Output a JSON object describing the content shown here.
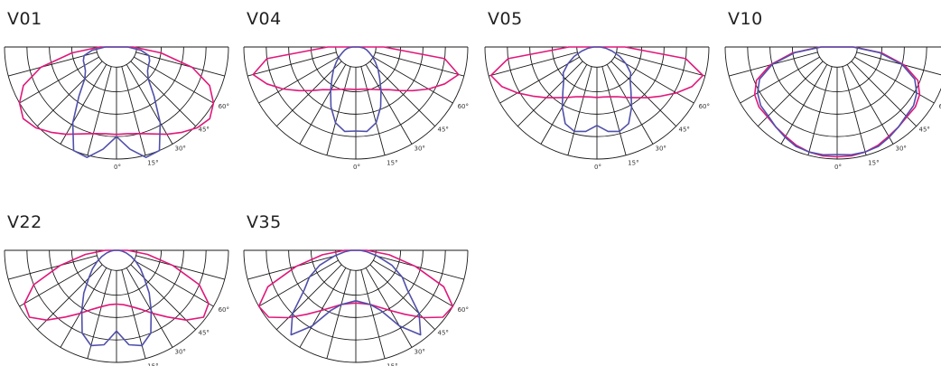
{
  "colors": {
    "c0": "#e0187a",
    "c90": "#5050aa",
    "grid": "#1a1a1a"
  },
  "angle_labels": [
    "0°",
    "15°",
    "30°",
    "45°",
    "60°"
  ],
  "panels": [
    {
      "title": "V01",
      "c0": [
        0.78,
        0.78,
        0.8,
        0.84,
        0.9,
        0.96,
        1.02,
        1.05,
        1.0,
        0.9,
        0.7,
        0.4,
        0.15
      ],
      "c90": [
        0.8,
        0.92,
        1.02,
        1.0,
        0.78,
        0.55,
        0.4,
        0.35,
        0.33,
        0.32,
        0.3,
        0.22,
        0.1
      ]
    },
    {
      "title": "V04",
      "c0": [
        0.38,
        0.38,
        0.39,
        0.41,
        0.44,
        0.48,
        0.55,
        0.64,
        0.75,
        0.86,
        0.95,
        0.8,
        0.25
      ],
      "c90": [
        0.75,
        0.76,
        0.7,
        0.58,
        0.45,
        0.35,
        0.28,
        0.22,
        0.17,
        0.13,
        0.1,
        0.07,
        0.03
      ]
    },
    {
      "title": "V05",
      "c0": [
        0.45,
        0.45,
        0.46,
        0.48,
        0.52,
        0.57,
        0.64,
        0.72,
        0.82,
        0.92,
        0.98,
        0.8,
        0.25
      ],
      "c90": [
        0.7,
        0.76,
        0.78,
        0.74,
        0.62,
        0.5,
        0.42,
        0.38,
        0.3,
        0.22,
        0.14,
        0.08,
        0.03
      ]
    },
    {
      "title": "V10",
      "c0": [
        0.98,
        0.98,
        0.97,
        0.95,
        0.92,
        0.9,
        0.88,
        0.88,
        0.85,
        0.78,
        0.62,
        0.4,
        0.15
      ],
      "c90": [
        0.96,
        0.97,
        0.97,
        0.96,
        0.93,
        0.9,
        0.87,
        0.86,
        0.82,
        0.75,
        0.6,
        0.38,
        0.14
      ]
    },
    {
      "title": "V22",
      "c0": [
        0.48,
        0.49,
        0.52,
        0.57,
        0.65,
        0.75,
        0.88,
        0.98,
        0.95,
        0.8,
        0.52,
        0.28,
        0.1
      ],
      "c90": [
        0.72,
        0.85,
        0.88,
        0.8,
        0.62,
        0.48,
        0.35,
        0.27,
        0.2,
        0.14,
        0.09,
        0.05,
        0.02
      ]
    },
    {
      "title": "V35",
      "c0": [
        0.47,
        0.48,
        0.5,
        0.55,
        0.62,
        0.72,
        0.85,
        0.98,
        1.0,
        0.85,
        0.55,
        0.3,
        0.1
      ],
      "c90": [
        0.45,
        0.47,
        0.5,
        0.58,
        0.78,
        0.95,
        0.8,
        0.58,
        0.48,
        0.35,
        0.2,
        0.1,
        0.04
      ]
    }
  ]
}
